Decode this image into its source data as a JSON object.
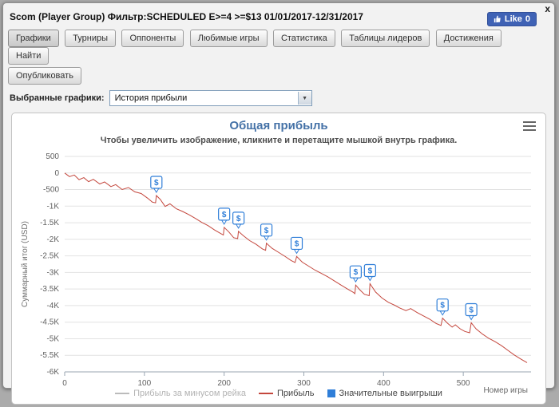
{
  "window": {
    "close_glyph": "x"
  },
  "header": {
    "title": "Scom (Player Group) Фильтр:SCHEDULED E>=4 >=$13 01/01/2017-12/31/2017",
    "like": {
      "label": "Like",
      "count": "0"
    }
  },
  "tabs": {
    "active": "Графики",
    "row1": [
      "Графики",
      "Турниры",
      "Оппоненты",
      "Любимые игры",
      "Статистика",
      "Таблицы лидеров",
      "Достижения",
      "Найти"
    ],
    "row2": [
      "Опубликовать"
    ]
  },
  "controls": {
    "label": "Выбранные графики:",
    "selected_option": "История прибыли",
    "arrow_glyph": "▼"
  },
  "chart_data": {
    "type": "line",
    "title": "Общая прибыль",
    "subtitle": "Чтобы увеличить изображение, кликните и перетащите мышкой внутрь графика.",
    "ylabel": "Суммарный итог (USD)",
    "xlabel": "Номер игры",
    "xlim": [
      0,
      585
    ],
    "ylim": [
      -6000,
      500
    ],
    "xticks": [
      0,
      100,
      200,
      300,
      400,
      500
    ],
    "yticks": [
      500,
      0,
      -500,
      -1000,
      -1500,
      -2000,
      -2500,
      -3000,
      -3500,
      -4000,
      -4500,
      -5000,
      -5500,
      -6000
    ],
    "ytick_labels": [
      "500",
      "0",
      "-500",
      "-1K",
      "-1.5K",
      "-2K",
      "-2.5K",
      "-3K",
      "-3.5K",
      "-4K",
      "-4.5K",
      "-5K",
      "-5.5K",
      "-6K"
    ],
    "grid": true,
    "legend_position": "bottom",
    "colors": {
      "title": "#4572a7",
      "axis_text": "#606060",
      "grid": "#e2e2e2",
      "axis_line": "#9aa6b2"
    },
    "series": [
      {
        "name": "Прибыль за минусом рейка",
        "type": "line",
        "color": "#bbbbbb",
        "visible": false,
        "points": []
      },
      {
        "name": "Прибыль",
        "type": "line",
        "color": "#c4473d",
        "visible": true,
        "points": [
          [
            0,
            0
          ],
          [
            6,
            -110
          ],
          [
            12,
            -60
          ],
          [
            18,
            -200
          ],
          [
            24,
            -140
          ],
          [
            30,
            -260
          ],
          [
            36,
            -190
          ],
          [
            44,
            -330
          ],
          [
            50,
            -270
          ],
          [
            58,
            -410
          ],
          [
            64,
            -350
          ],
          [
            72,
            -500
          ],
          [
            80,
            -440
          ],
          [
            88,
            -570
          ],
          [
            96,
            -620
          ],
          [
            104,
            -760
          ],
          [
            110,
            -880
          ],
          [
            114,
            -900
          ],
          [
            115,
            -680
          ],
          [
            120,
            -800
          ],
          [
            126,
            -1010
          ],
          [
            132,
            -930
          ],
          [
            140,
            -1080
          ],
          [
            148,
            -1160
          ],
          [
            156,
            -1260
          ],
          [
            164,
            -1370
          ],
          [
            172,
            -1490
          ],
          [
            180,
            -1590
          ],
          [
            188,
            -1720
          ],
          [
            196,
            -1830
          ],
          [
            199,
            -1870
          ],
          [
            200,
            -1640
          ],
          [
            206,
            -1780
          ],
          [
            212,
            -1950
          ],
          [
            217,
            -1980
          ],
          [
            218,
            -1760
          ],
          [
            224,
            -1890
          ],
          [
            232,
            -2040
          ],
          [
            240,
            -2150
          ],
          [
            248,
            -2290
          ],
          [
            252,
            -2330
          ],
          [
            253,
            -2120
          ],
          [
            260,
            -2270
          ],
          [
            268,
            -2390
          ],
          [
            276,
            -2510
          ],
          [
            284,
            -2640
          ],
          [
            289,
            -2700
          ],
          [
            291,
            -2520
          ],
          [
            298,
            -2690
          ],
          [
            306,
            -2810
          ],
          [
            314,
            -2930
          ],
          [
            322,
            -3030
          ],
          [
            330,
            -3130
          ],
          [
            338,
            -3250
          ],
          [
            346,
            -3370
          ],
          [
            354,
            -3490
          ],
          [
            362,
            -3600
          ],
          [
            364,
            -3640
          ],
          [
            365,
            -3380
          ],
          [
            370,
            -3520
          ],
          [
            376,
            -3660
          ],
          [
            382,
            -3700
          ],
          [
            383,
            -3340
          ],
          [
            390,
            -3590
          ],
          [
            398,
            -3770
          ],
          [
            406,
            -3900
          ],
          [
            414,
            -3990
          ],
          [
            420,
            -4070
          ],
          [
            428,
            -4150
          ],
          [
            434,
            -4090
          ],
          [
            442,
            -4210
          ],
          [
            450,
            -4310
          ],
          [
            458,
            -4410
          ],
          [
            466,
            -4540
          ],
          [
            472,
            -4600
          ],
          [
            474,
            -4380
          ],
          [
            480,
            -4530
          ],
          [
            486,
            -4650
          ],
          [
            490,
            -4580
          ],
          [
            496,
            -4700
          ],
          [
            502,
            -4780
          ],
          [
            508,
            -4820
          ],
          [
            510,
            -4520
          ],
          [
            516,
            -4700
          ],
          [
            524,
            -4860
          ],
          [
            532,
            -4990
          ],
          [
            540,
            -5090
          ],
          [
            548,
            -5210
          ],
          [
            556,
            -5350
          ],
          [
            564,
            -5490
          ],
          [
            572,
            -5610
          ],
          [
            580,
            -5720
          ]
        ]
      },
      {
        "name": "Значительные выигрыши",
        "type": "marker",
        "color": "#2f7ed8",
        "symbol": "$",
        "points": [
          [
            115,
            -680
          ],
          [
            200,
            -1640
          ],
          [
            218,
            -1760
          ],
          [
            253,
            -2120
          ],
          [
            291,
            -2520
          ],
          [
            365,
            -3380
          ],
          [
            383,
            -3340
          ],
          [
            474,
            -4380
          ],
          [
            510,
            -4520
          ]
        ]
      }
    ]
  }
}
